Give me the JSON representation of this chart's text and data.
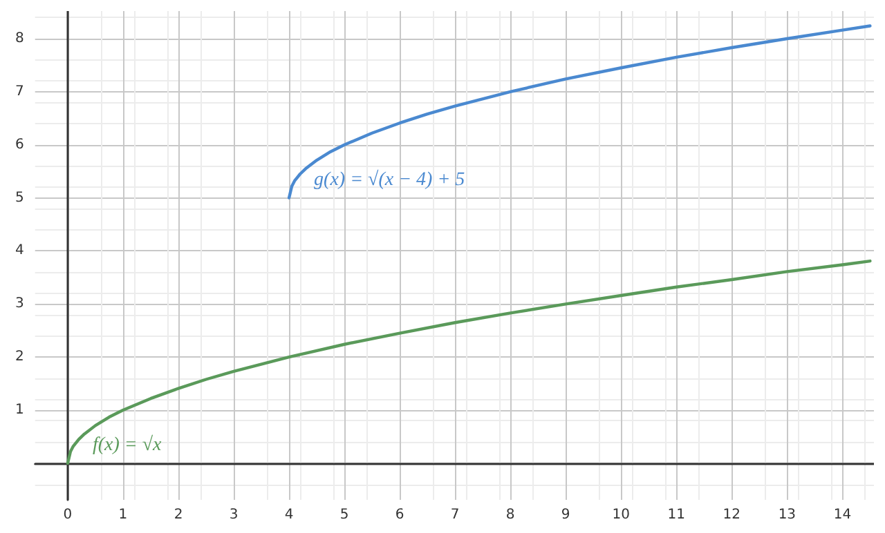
{
  "chart_data": {
    "type": "line",
    "series": [
      {
        "color": "#5a9a5a",
        "x": [
          0,
          0.05,
          0.1,
          0.2,
          0.3,
          0.5,
          0.75,
          1,
          1.5,
          2,
          2.5,
          3,
          4,
          5,
          6,
          7,
          8,
          9,
          10,
          11,
          12,
          13,
          14,
          14.5
        ],
        "values": [
          0,
          0.22,
          0.32,
          0.45,
          0.55,
          0.71,
          0.87,
          1,
          1.22,
          1.41,
          1.58,
          1.73,
          2,
          2.24,
          2.45,
          2.65,
          2.83,
          3,
          3.16,
          3.32,
          3.46,
          3.61,
          3.74,
          3.81
        ]
      },
      {
        "color": "#4a89d0",
        "x": [
          4,
          4.05,
          4.1,
          4.2,
          4.3,
          4.5,
          4.75,
          5,
          5.5,
          6,
          6.5,
          7,
          8,
          9,
          10,
          11,
          12,
          13,
          14,
          14.5
        ],
        "values": [
          5,
          5.22,
          5.32,
          5.45,
          5.55,
          5.71,
          5.87,
          6,
          6.22,
          6.41,
          6.58,
          6.73,
          7,
          7.24,
          7.45,
          7.65,
          7.83,
          8,
          8.16,
          8.24
        ]
      }
    ],
    "xlim": [
      -0.59,
      14.57
    ],
    "ylim": [
      -0.69,
      8.52
    ],
    "xticks": [
      0,
      1,
      2,
      3,
      4,
      5,
      6,
      7,
      8,
      9,
      10,
      11,
      12,
      13,
      14
    ],
    "yticks": [
      {
        "value": 0,
        "label": null
      },
      1,
      2,
      3,
      4,
      5,
      6,
      7,
      8
    ],
    "grid": true,
    "annotations": [
      "f(x) = √x",
      "g(x) = √(x − 4) + 5"
    ]
  }
}
